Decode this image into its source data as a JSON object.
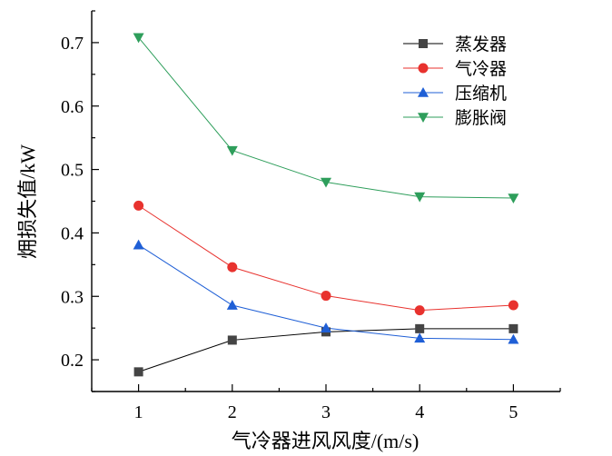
{
  "chart_data": {
    "type": "line",
    "x": [
      1,
      2,
      3,
      4,
      5
    ],
    "xlim": [
      0.5,
      5.5
    ],
    "ylim": [
      0.15,
      0.75
    ],
    "xticks": [
      1,
      2,
      3,
      4,
      5
    ],
    "yticks": [
      0.2,
      0.3,
      0.4,
      0.5,
      0.6,
      0.7
    ],
    "xtick_labels": [
      "1",
      "2",
      "3",
      "4",
      "5"
    ],
    "ytick_labels": [
      "0.2",
      "0.3",
      "0.4",
      "0.5",
      "0.6",
      "0.7"
    ],
    "xlabel": "气冷器进风风度/(m/s)",
    "ylabel": "㶲损失值/kW",
    "grid": false,
    "legend_position": "top-right",
    "series": [
      {
        "name": "蒸发器",
        "color": "#000000",
        "marker_color": "#444444",
        "marker": "square",
        "values": [
          0.181,
          0.231,
          0.244,
          0.249,
          0.249
        ]
      },
      {
        "name": "气冷器",
        "color": "#e8322e",
        "marker_color": "#e8322e",
        "marker": "circle",
        "values": [
          0.443,
          0.346,
          0.301,
          0.278,
          0.286
        ]
      },
      {
        "name": "压缩机",
        "color": "#1f5fd6",
        "marker_color": "#1f5fd6",
        "marker": "triangle-up",
        "values": [
          0.381,
          0.286,
          0.25,
          0.234,
          0.232
        ]
      },
      {
        "name": "膨胀阀",
        "color": "#2e9e5b",
        "marker_color": "#2e9e5b",
        "marker": "triangle-down",
        "values": [
          0.708,
          0.53,
          0.48,
          0.457,
          0.455
        ]
      }
    ]
  }
}
